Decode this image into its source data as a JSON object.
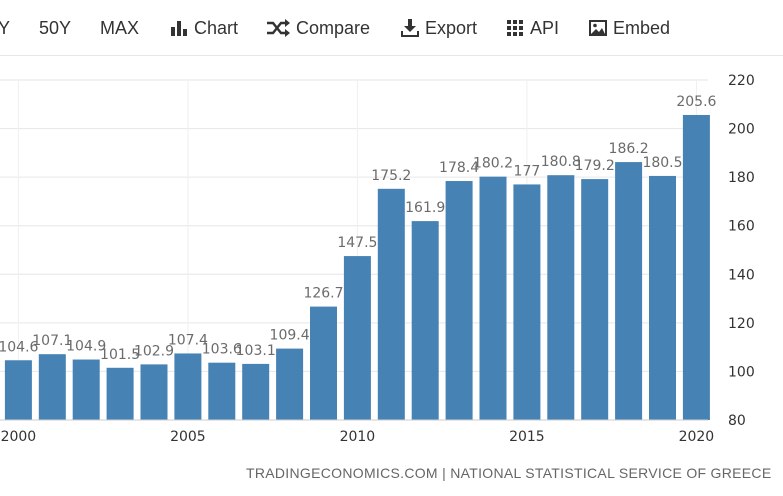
{
  "toolbar": {
    "items": [
      {
        "label": "Y",
        "icon": null
      },
      {
        "label": "50Y",
        "icon": null
      },
      {
        "label": "MAX",
        "icon": null
      },
      {
        "label": "Chart",
        "icon": "bar-chart-icon"
      },
      {
        "label": "Compare",
        "icon": "shuffle-icon"
      },
      {
        "label": "Export",
        "icon": "download-icon"
      },
      {
        "label": "API",
        "icon": "grid-icon"
      },
      {
        "label": "Embed",
        "icon": "image-icon"
      }
    ]
  },
  "source": "TRADINGECONOMICS.COM | NATIONAL STATISTICAL SERVICE OF GREECE",
  "colors": {
    "bar": "#4682b4",
    "label": "#6b6b6b",
    "grid": "#e6e6e6"
  },
  "chart_data": {
    "type": "bar",
    "categories": [
      1999,
      2000,
      2001,
      2002,
      2003,
      2004,
      2005,
      2006,
      2007,
      2008,
      2009,
      2010,
      2011,
      2012,
      2013,
      2014,
      2015,
      2016,
      2017,
      2018,
      2019,
      2020
    ],
    "values": [
      null,
      104.6,
      107.1,
      104.9,
      101.5,
      102.9,
      107.4,
      103.6,
      103.1,
      109.4,
      126.7,
      147.5,
      175.2,
      161.9,
      178.4,
      180.2,
      177,
      180.8,
      179.2,
      186.2,
      180.5,
      205.6
    ],
    "labels": [
      "",
      "104.6",
      "107.1",
      "104.9",
      "101.5",
      "102.9",
      "107.4",
      "103.6",
      "103.1",
      "109.4",
      "126.7",
      "147.5",
      "175.2",
      "161.9",
      "178.4",
      "180.2",
      "177",
      "180.8",
      "179.2",
      "186.2",
      "180.5",
      "205.6"
    ],
    "x_ticks": [
      "2000",
      "2005",
      "2010",
      "2015",
      "2020"
    ],
    "y_ticks": [
      "80",
      "100",
      "120",
      "140",
      "160",
      "180",
      "200",
      "220"
    ],
    "ylim": [
      80,
      220
    ],
    "y_axis_side": "right",
    "grid": true,
    "title": "",
    "xlabel": "",
    "ylabel": ""
  }
}
